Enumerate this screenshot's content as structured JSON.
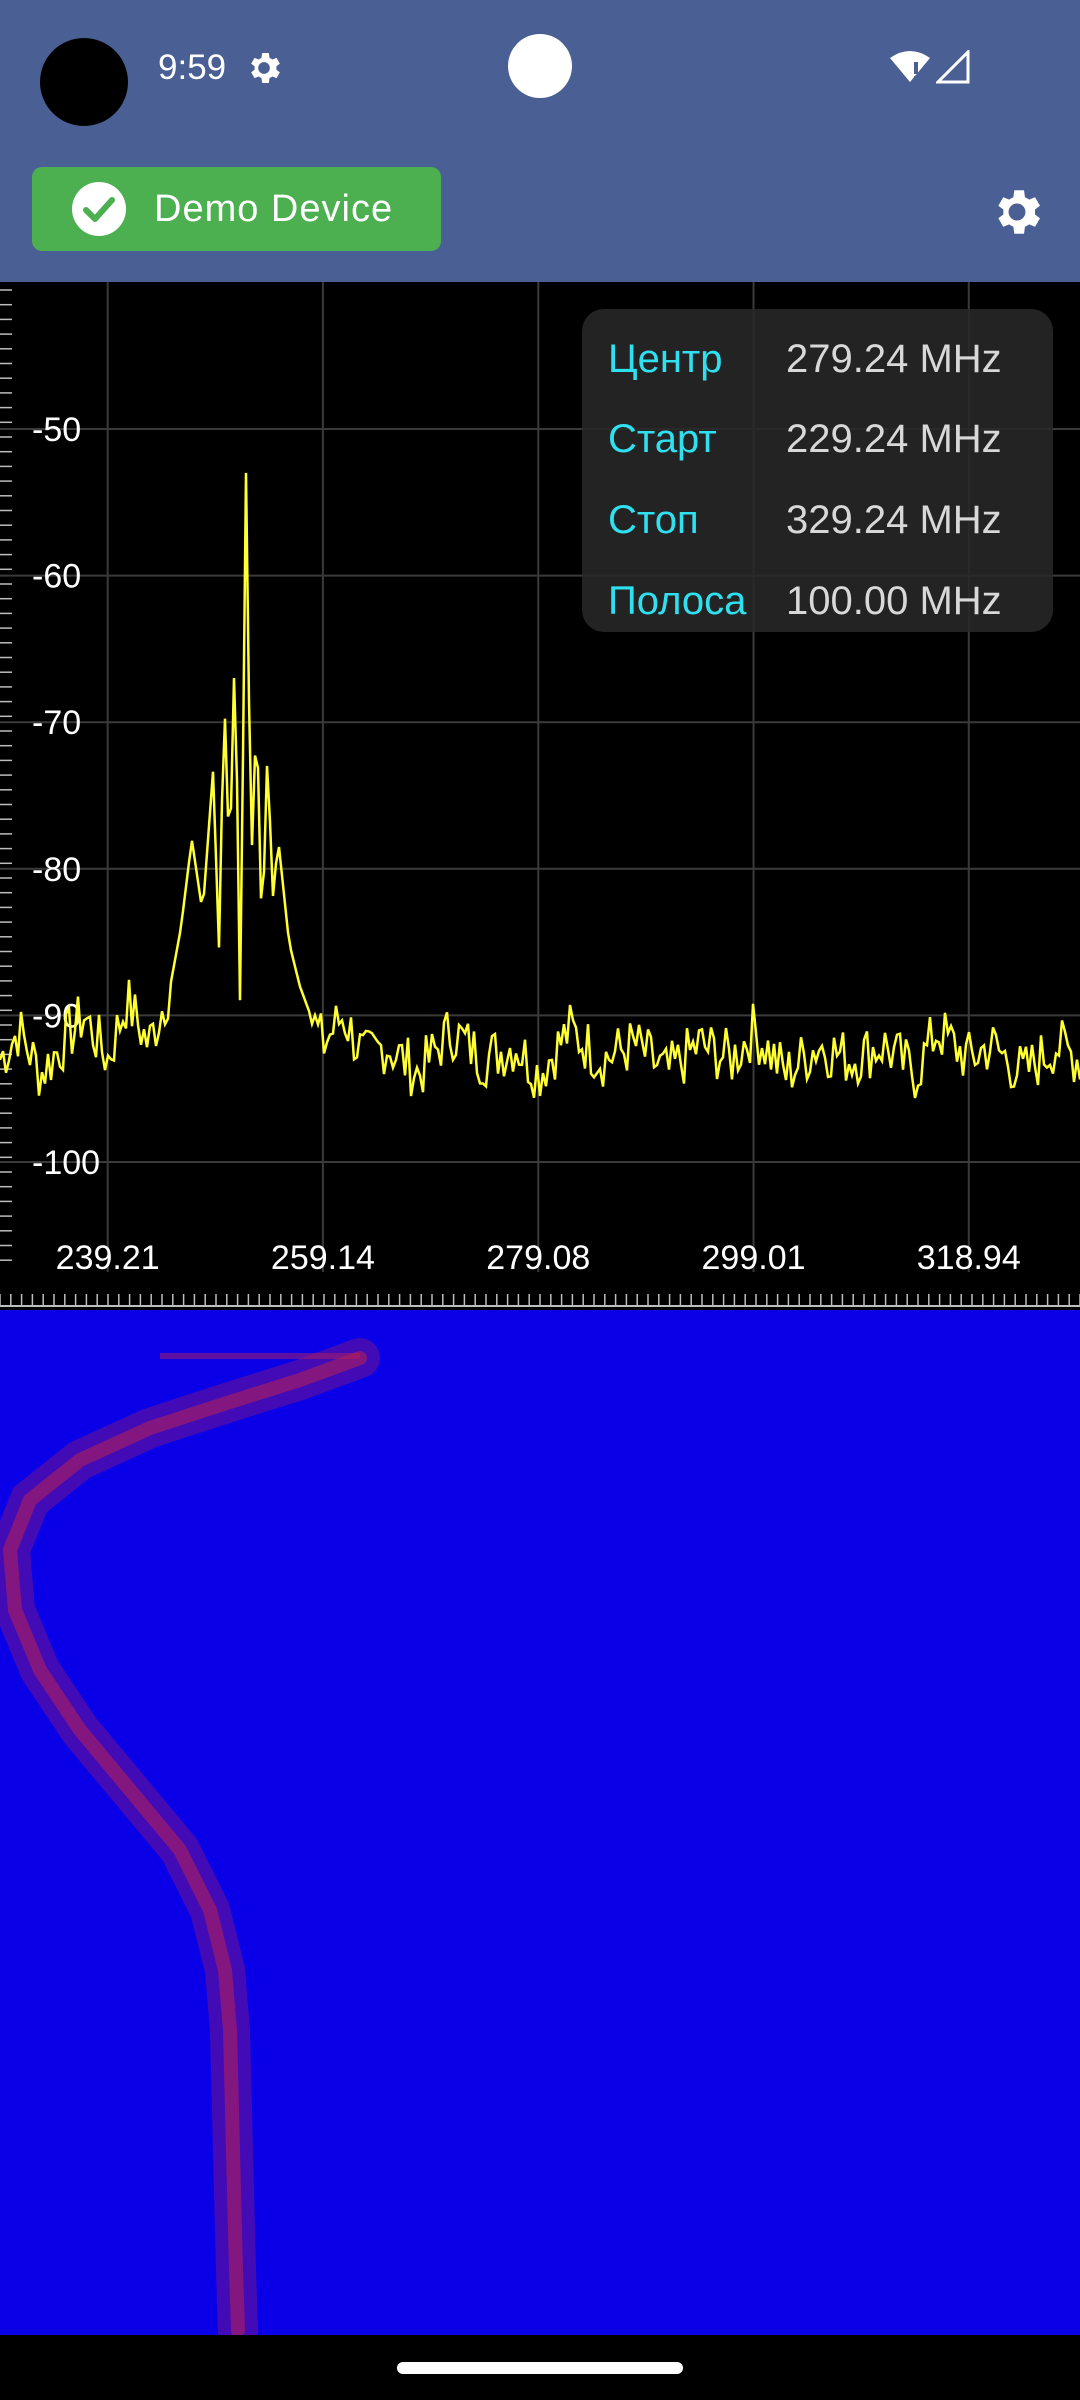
{
  "status_bar": {
    "time": "9:59",
    "icons": [
      "settings-icon",
      "wifi-alert-icon",
      "cell-signal-icon"
    ]
  },
  "toolbar": {
    "device_label": "Demo Device",
    "device_status_icon": "check-circle-icon",
    "settings_icon": "gear-icon",
    "colors": {
      "bar": "#4a5f93",
      "chip": "#4caf50"
    }
  },
  "info_panel": {
    "rows": [
      {
        "key": "Центр",
        "value": "279.24 MHz"
      },
      {
        "key": "Старт",
        "value": "229.24 MHz"
      },
      {
        "key": "Стоп",
        "value": "329.24 MHz"
      },
      {
        "key": "Полоса",
        "value": "100.00 MHz"
      }
    ]
  },
  "chart_data": {
    "type": "line",
    "title": "",
    "xlabel": "",
    "ylabel": "",
    "x_ticks": [
      "239.21",
      "259.14",
      "279.08",
      "299.01",
      "318.94"
    ],
    "y_ticks": [
      "-50",
      "-60",
      "-70",
      "-80",
      "-90",
      "-100"
    ],
    "xlim": [
      229.24,
      329.24
    ],
    "ylim": [
      -110,
      -40
    ],
    "grid": true,
    "line_color": "#ffff33",
    "series": [
      {
        "x": [
          229.24,
          231.0,
          233.0,
          235.0,
          237.0,
          239.21,
          241.0,
          243.0,
          245.0,
          246.0,
          247.0,
          248.0,
          249.0,
          249.5,
          250.0,
          250.5,
          251.0,
          251.5,
          252.0,
          252.5,
          253.0,
          253.5,
          254.0,
          254.5,
          255.0,
          256.0,
          257.0,
          258.0,
          259.14,
          261.0,
          263.0,
          265.0,
          268.0,
          271.0,
          274.0,
          277.0,
          279.08,
          282.0,
          285.0,
          288.0,
          291.0,
          294.0,
          297.0,
          299.01,
          302.0,
          305.0,
          308.0,
          311.0,
          314.0,
          316.0,
          318.94,
          321.0,
          324.0,
          327.0,
          329.24
        ],
        "y": [
          -93,
          -91,
          -94,
          -92,
          -90,
          -93,
          -89,
          -92,
          -88,
          -84,
          -78,
          -83,
          -73,
          -86,
          -68,
          -80,
          -64,
          -91,
          -52,
          -80,
          -69,
          -85,
          -72,
          -82,
          -78,
          -85,
          -88,
          -90,
          -92,
          -90,
          -93,
          -92,
          -94,
          -91,
          -93,
          -92,
          -94,
          -91,
          -93,
          -92,
          -94,
          -92,
          -93,
          -91,
          -94,
          -92,
          -93,
          -92,
          -94,
          -91,
          -93,
          -92,
          -94,
          -92,
          -93
        ]
      }
    ]
  },
  "waterfall": {
    "background_color": "#0a00e8",
    "trace_color": "#b0205a"
  }
}
